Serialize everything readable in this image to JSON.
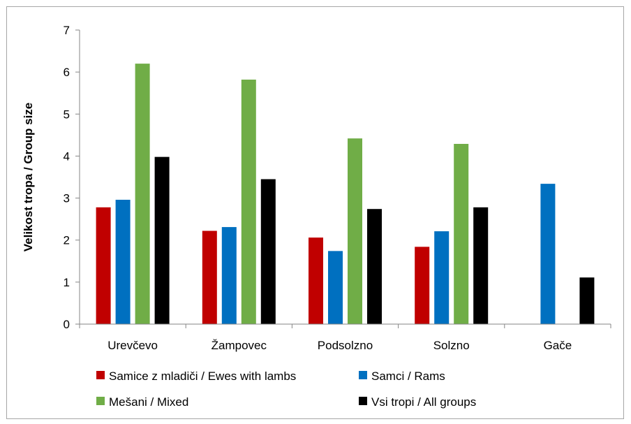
{
  "chart_data": {
    "type": "bar",
    "title": "",
    "xlabel": "",
    "ylabel": "Velikost tropa / Group size",
    "ylim": [
      0,
      7
    ],
    "yticks": [
      "0",
      "1",
      "2",
      "3",
      "4",
      "5",
      "6",
      "7"
    ],
    "grid": false,
    "legend_position": "bottom",
    "categories": [
      "Urevčevo",
      "Žampovec",
      "Podsolzno",
      "Solzno",
      "Gače"
    ],
    "series": [
      {
        "name": "Samice z mladiči / Ewes with lambs",
        "color": "#c00000",
        "values": [
          2.78,
          2.22,
          2.06,
          1.84,
          null
        ]
      },
      {
        "name": "Samci / Rams",
        "color": "#0070c0",
        "values": [
          2.96,
          2.31,
          1.74,
          2.21,
          3.34
        ]
      },
      {
        "name": "Mešani / Mixed",
        "color": "#70ad47",
        "values": [
          6.2,
          5.82,
          4.42,
          4.29,
          null
        ]
      },
      {
        "name": "Vsi tropi / All groups",
        "color": "#000000",
        "values": [
          3.98,
          3.45,
          2.74,
          2.78,
          1.11
        ]
      }
    ]
  }
}
